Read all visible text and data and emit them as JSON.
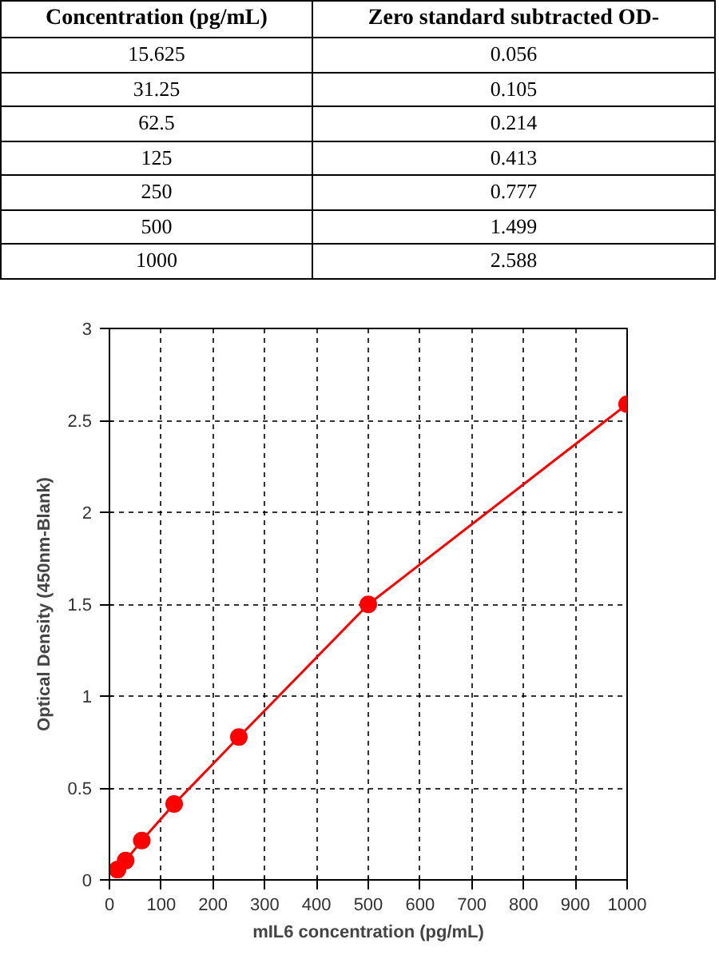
{
  "chart_data": [
    {
      "type": "other",
      "annotations": [
        "Concentration (pg/mL)",
        "Zero standard subtracted OD-",
        "15.625",
        "0.056",
        "31.25",
        "0.105",
        "62.5",
        "0.214",
        "125",
        "0.413",
        "250",
        "0.777",
        "500",
        "1.499",
        "1000",
        "2.588"
      ]
    },
    {
      "type": "line",
      "xlabel": "mIL6 concentration (pg/mL)",
      "ylabel": "Optical Density (450nm-Blank)",
      "x": [
        15.625,
        31.25,
        62.5,
        125,
        250,
        500,
        1000
      ],
      "series": [
        {
          "color": "#ff0000",
          "values": [
            0.056,
            0.105,
            0.214,
            0.413,
            0.777,
            1.499,
            2.588
          ]
        }
      ],
      "xlim": [
        0,
        1000
      ],
      "ylim": [
        0,
        3
      ],
      "xticks": [
        0,
        100,
        200,
        300,
        400,
        500,
        600,
        700,
        800,
        900,
        1000
      ],
      "yticks": [
        0,
        0.5,
        1,
        1.5,
        2,
        2.5,
        3
      ],
      "grid": true,
      "marker": "circle",
      "line_style": "solid"
    }
  ]
}
